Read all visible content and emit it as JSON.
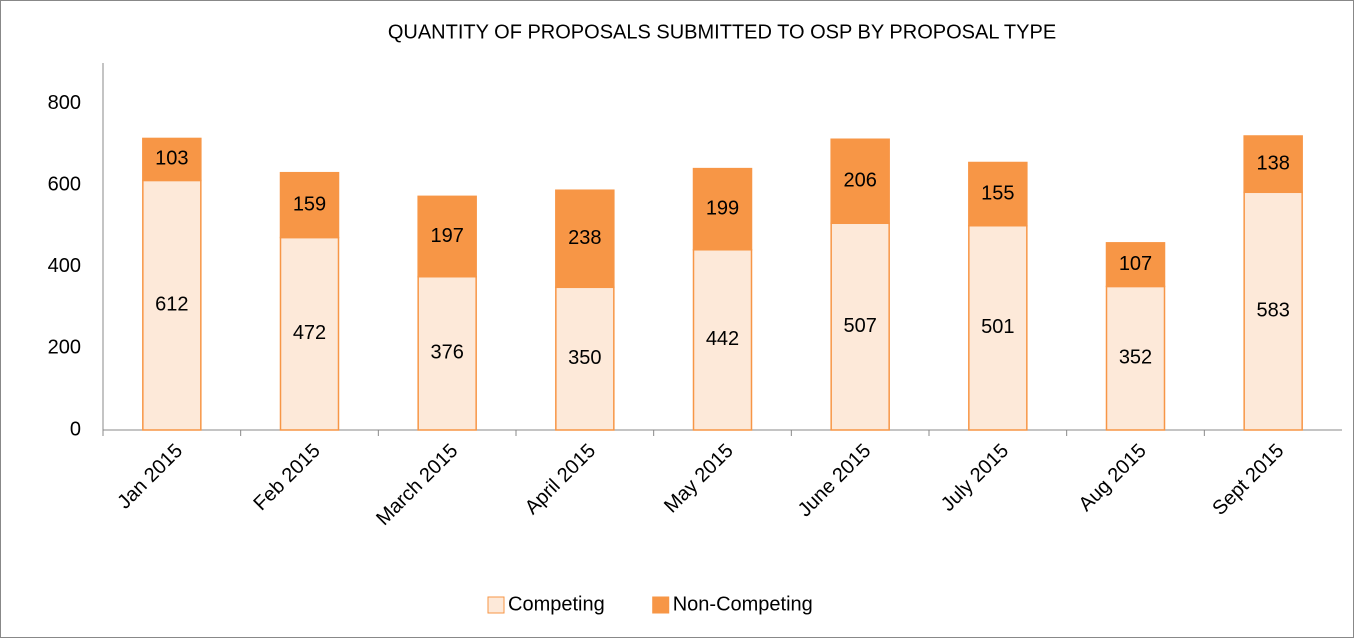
{
  "chart_data": {
    "type": "bar",
    "stacked": true,
    "title": "QUANTITY OF PROPOSALS SUBMITTED TO OSP BY PROPOSAL TYPE",
    "categories": [
      "Jan 2015",
      "Feb 2015",
      "March 2015",
      "April 2015",
      "May 2015",
      "June 2015",
      "July 2015",
      "Aug 2015",
      "Sept 2015"
    ],
    "series": [
      {
        "name": "Competing",
        "color": "#fde9d9",
        "stroke": "#f79646",
        "values": [
          612,
          472,
          376,
          350,
          442,
          507,
          501,
          352,
          583
        ]
      },
      {
        "name": "Non-Competing",
        "color": "#f79646",
        "stroke": "#f79646",
        "values": [
          103,
          159,
          197,
          238,
          199,
          206,
          155,
          107,
          138
        ]
      }
    ],
    "ylim": [
      0,
      900
    ],
    "yticks": [
      0,
      200,
      400,
      600,
      800
    ],
    "grid": false,
    "legend": "bottom"
  }
}
